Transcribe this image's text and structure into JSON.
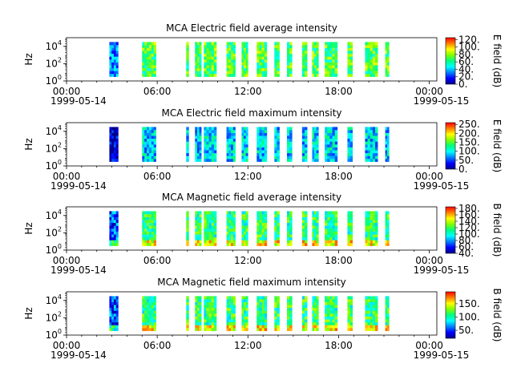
{
  "figure": {
    "x_ticks": [
      "00:00",
      "06:00",
      "12:00",
      "18:00",
      "00:00"
    ],
    "x_date_start": "1999-05-14",
    "x_date_end": "1999-05-15",
    "ylabel": "Hz",
    "colormap": [
      "#00008b",
      "#0000ff",
      "#0080ff",
      "#00ffff",
      "#00ff80",
      "#80ff00",
      "#ffff00",
      "#ff8000",
      "#ff0000"
    ]
  },
  "chart_data": [
    {
      "type": "heatmap",
      "title": "MCA  Electric field average intensity",
      "xlabel": "",
      "ylabel": "Hz",
      "xlim": [
        "1999-05-14 00:00",
        "1999-05-15 00:30"
      ],
      "ylim": [
        1,
        100000
      ],
      "yscale": "log",
      "y_tick_labels": [
        "10^0",
        "10^2",
        "10^4"
      ],
      "colorbar_label": "E field (dB)",
      "colorbar_ticks": [
        "0.",
        "20.",
        "40.",
        "60.",
        "80.",
        "100.",
        "120."
      ],
      "colorbar_range": [
        0,
        125
      ],
      "data_intervals": [
        [
          "02:50",
          "03:25"
        ],
        [
          "05:00",
          "05:55"
        ],
        [
          "07:55",
          "08:05"
        ],
        [
          "08:30",
          "08:55"
        ],
        [
          "09:05",
          "09:55"
        ],
        [
          "10:35",
          "11:10"
        ],
        [
          "11:35",
          "12:00"
        ],
        [
          "12:35",
          "13:15"
        ],
        [
          "13:45",
          "14:05"
        ],
        [
          "14:35",
          "14:55"
        ],
        [
          "15:35",
          "15:55"
        ],
        [
          "16:15",
          "16:40"
        ],
        [
          "17:05",
          "17:55"
        ],
        [
          "18:35",
          "18:55"
        ],
        [
          "19:45",
          "20:35"
        ],
        [
          "21:05",
          "21:20"
        ]
      ],
      "level": 0.55
    },
    {
      "type": "heatmap",
      "title": "MCA  Electric field maximum intensity",
      "xlabel": "",
      "ylabel": "Hz",
      "xlim": [
        "1999-05-14 00:00",
        "1999-05-15 00:30"
      ],
      "ylim": [
        1,
        100000
      ],
      "yscale": "log",
      "y_tick_labels": [
        "10^0",
        "10^2",
        "10^4"
      ],
      "colorbar_label": "E field (dB)",
      "colorbar_ticks": [
        "0.",
        "50.",
        "100.",
        "150.",
        "200.",
        "250."
      ],
      "colorbar_range": [
        0,
        260
      ],
      "data_intervals": [
        [
          "02:50",
          "03:25"
        ],
        [
          "05:00",
          "05:55"
        ],
        [
          "07:55",
          "08:05"
        ],
        [
          "08:30",
          "08:55"
        ],
        [
          "09:05",
          "09:55"
        ],
        [
          "10:35",
          "11:10"
        ],
        [
          "11:35",
          "12:00"
        ],
        [
          "12:35",
          "13:15"
        ],
        [
          "13:45",
          "14:05"
        ],
        [
          "14:35",
          "14:55"
        ],
        [
          "15:35",
          "15:55"
        ],
        [
          "16:15",
          "16:40"
        ],
        [
          "17:05",
          "17:55"
        ],
        [
          "18:35",
          "18:55"
        ],
        [
          "19:45",
          "20:35"
        ],
        [
          "21:05",
          "21:20"
        ]
      ],
      "level": 0.35
    },
    {
      "type": "heatmap",
      "title": "MCA  Magnetic field average intensity",
      "xlabel": "",
      "ylabel": "Hz",
      "xlim": [
        "1999-05-14 00:00",
        "1999-05-15 00:30"
      ],
      "ylim": [
        1,
        100000
      ],
      "yscale": "log",
      "y_tick_labels": [
        "10^0",
        "10^2",
        "10^4"
      ],
      "colorbar_label": "B field (dB)",
      "colorbar_ticks": [
        "40.",
        "60.",
        "80.",
        "100.",
        "120.",
        "140.",
        "160.",
        "180."
      ],
      "colorbar_range": [
        40,
        185
      ],
      "data_intervals": [
        [
          "02:50",
          "03:25"
        ],
        [
          "05:00",
          "05:55"
        ],
        [
          "07:55",
          "08:05"
        ],
        [
          "08:30",
          "08:55"
        ],
        [
          "09:05",
          "09:55"
        ],
        [
          "10:35",
          "11:10"
        ],
        [
          "11:35",
          "12:00"
        ],
        [
          "12:35",
          "13:15"
        ],
        [
          "13:45",
          "14:05"
        ],
        [
          "14:35",
          "14:55"
        ],
        [
          "15:35",
          "15:55"
        ],
        [
          "16:15",
          "16:40"
        ],
        [
          "17:05",
          "17:55"
        ],
        [
          "18:35",
          "18:55"
        ],
        [
          "19:45",
          "20:35"
        ],
        [
          "21:05",
          "21:20"
        ]
      ],
      "level": 0.5
    },
    {
      "type": "heatmap",
      "title": "MCA  Magnetic field maximum intensity",
      "xlabel": "",
      "ylabel": "Hz",
      "xlim": [
        "1999-05-14 00:00",
        "1999-05-15 00:30"
      ],
      "ylim": [
        1,
        100000
      ],
      "yscale": "log",
      "y_tick_labels": [
        "10^0",
        "10^2",
        "10^4"
      ],
      "colorbar_label": "B field (dB)",
      "colorbar_ticks": [
        "50.",
        "100.",
        "150."
      ],
      "colorbar_range": [
        20,
        195
      ],
      "data_intervals": [
        [
          "02:50",
          "03:25"
        ],
        [
          "05:00",
          "05:55"
        ],
        [
          "07:55",
          "08:05"
        ],
        [
          "08:30",
          "08:55"
        ],
        [
          "09:05",
          "09:55"
        ],
        [
          "10:35",
          "11:10"
        ],
        [
          "11:35",
          "12:00"
        ],
        [
          "12:35",
          "13:15"
        ],
        [
          "13:45",
          "14:05"
        ],
        [
          "14:35",
          "14:55"
        ],
        [
          "15:35",
          "15:55"
        ],
        [
          "16:15",
          "16:40"
        ],
        [
          "17:05",
          "17:55"
        ],
        [
          "18:35",
          "18:55"
        ],
        [
          "19:45",
          "20:35"
        ],
        [
          "21:05",
          "21:20"
        ]
      ],
      "level": 0.5
    }
  ]
}
